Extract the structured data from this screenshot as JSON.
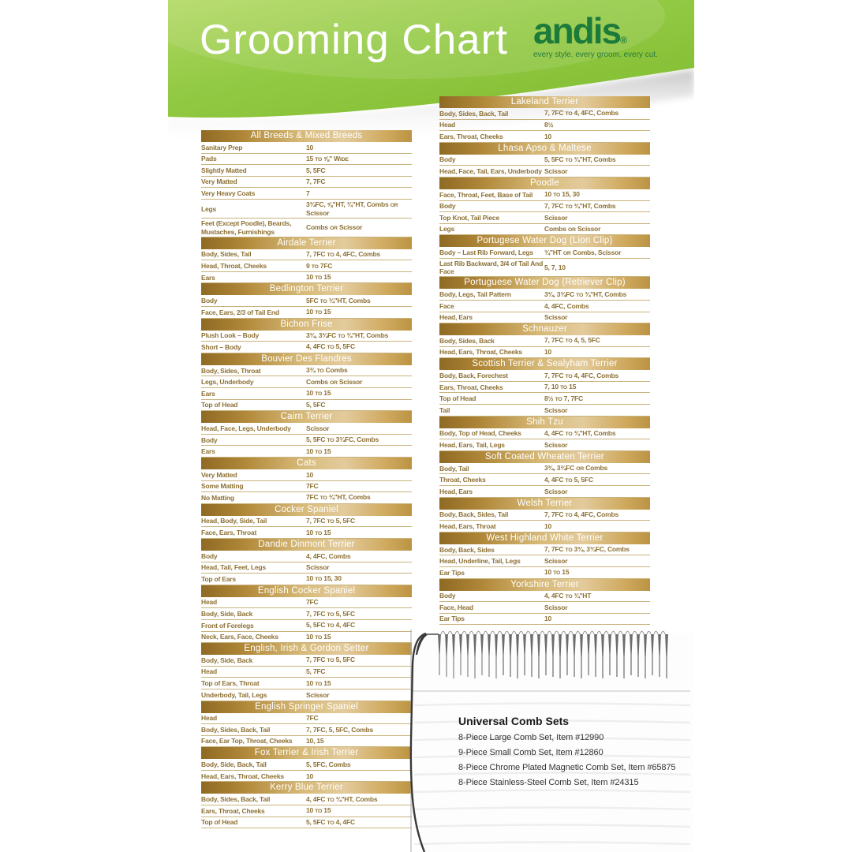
{
  "header": {
    "title": "Grooming Chart",
    "brand": "andis",
    "reg": "®",
    "tagline": "every style. every groom. every cut."
  },
  "colors": {
    "header_green": "#8ec73f",
    "header_green_light": "#b2d862",
    "header_green_dark": "#82bd31",
    "brand_green": "#1c7a3a",
    "bar_gold_dark": "#8f6a24",
    "bar_gold_light": "#e3cb9c",
    "row_text_gold": "#8d7134",
    "row_line_gold": "#c9b27c"
  },
  "left_tables": [
    {
      "title": "All Breeds & Mixed Breeds",
      "rows": [
        [
          "Sanitary Prep",
          "10"
        ],
        [
          "Pads",
          "15 to ⅝\" Wide"
        ],
        [
          "Slightly Matted",
          "5, 5FC"
        ],
        [
          "Very Matted",
          "7, 7FC"
        ],
        [
          "Very Heavy Coats",
          "7"
        ],
        [
          "Legs",
          "3¾FC, ⅝\"HT, ¾\"HT, Combs or Scissor"
        ],
        [
          "Feet (Except Poodle), Beards, Mustaches, Furnishings",
          "Combs or Scissor"
        ]
      ]
    },
    {
      "title": "Airdale Terrier",
      "rows": [
        [
          "Body, Sides, Tail",
          "7, 7FC to 4, 4FC, Combs"
        ],
        [
          "Head, Throat, Cheeks",
          "9 to 7FC"
        ],
        [
          "Ears",
          "10 to 15"
        ]
      ]
    },
    {
      "title": "Bedlington Terrier",
      "rows": [
        [
          "Body",
          "5FC to ¾\"HT, Combs"
        ],
        [
          "Face, Ears, 2/3 of Tail End",
          "10 to 15"
        ]
      ]
    },
    {
      "title": "Bichon Frise",
      "rows": [
        [
          "Plush Look – Body",
          "3¾, 3¾FC to ¾\"HT, Combs"
        ],
        [
          "Short – Body",
          "4, 4FC to 5, 5FC"
        ]
      ]
    },
    {
      "title": "Bouvier Des Flandres",
      "rows": [
        [
          "Body, Sides, Throat",
          "3¾ to Combs"
        ],
        [
          "Legs, Underbody",
          "Combs or Scissor"
        ],
        [
          "Ears",
          "10 to 15"
        ],
        [
          "Top of Head",
          "5, 5FC"
        ]
      ]
    },
    {
      "title": "Cairn Terrier",
      "rows": [
        [
          "Head, Face, Legs, Underbody",
          "Scissor"
        ],
        [
          "Body",
          "5, 5FC to 3¾FC, Combs"
        ],
        [
          "Ears",
          "10 to 15"
        ]
      ]
    },
    {
      "title": "Cats",
      "rows": [
        [
          "Very Matted",
          "10"
        ],
        [
          "Some Matting",
          "7FC"
        ],
        [
          "No Matting",
          "7FC to ¾\"HT, Combs"
        ]
      ]
    },
    {
      "title": "Cocker Spaniel",
      "rows": [
        [
          "Head, Body, Side, Tail",
          "7, 7FC to 5, 5FC"
        ],
        [
          "Face, Ears, Throat",
          "10 to 15"
        ]
      ]
    },
    {
      "title": "Dandie Dinmont Terrier",
      "rows": [
        [
          "Body",
          "4, 4FC, Combs"
        ],
        [
          "Head, Tail, Feet, Legs",
          "Scissor"
        ],
        [
          "Top of Ears",
          "10 to 15, 30"
        ]
      ]
    },
    {
      "title": "English Cocker Spaniel",
      "rows": [
        [
          "Head",
          "7FC"
        ],
        [
          "Body, Side, Back",
          "7, 7FC to 5, 5FC"
        ],
        [
          "Front of Forelegs",
          "5, 5FC to 4, 4FC"
        ],
        [
          "Neck, Ears, Face, Cheeks",
          "10 to 15"
        ]
      ]
    },
    {
      "title": "English, Irish & Gordon Setter",
      "rows": [
        [
          "Body, Side, Back",
          "7, 7FC to 5, 5FC"
        ],
        [
          "Head",
          "5, 7FC"
        ],
        [
          "Top of Ears, Throat",
          "10 to 15"
        ],
        [
          "Underbody, Tail, Legs",
          "Scissor"
        ]
      ]
    },
    {
      "title": "English Springer Spaniel",
      "rows": [
        [
          "Head",
          "7FC"
        ],
        [
          "Body, Sides, Back, Tail",
          "7, 7FC, 5, 5FC, Combs"
        ],
        [
          "Face, Ear Top, Throat, Cheeks",
          "10, 15"
        ]
      ]
    },
    {
      "title": "Fox Terrier & Irish Terrier",
      "rows": [
        [
          "Body, Side, Back, Tail",
          "5, 5FC, Combs"
        ],
        [
          "Head, Ears, Throat, Cheeks",
          "10"
        ]
      ]
    },
    {
      "title": "Kerry Blue Terrier",
      "rows": [
        [
          "Body, Sides, Back, Tail",
          "4, 4FC to ¾\"HT, Combs"
        ],
        [
          "Ears, Throat, Cheeks",
          "10 to 15"
        ],
        [
          "Top of Head",
          "5, 5FC to 4, 4FC"
        ]
      ]
    }
  ],
  "right_tables": [
    {
      "title": "Lakeland Terrier",
      "rows": [
        [
          "Body, Sides, Back, Tail",
          "7, 7FC to 4, 4FC, Combs"
        ],
        [
          "Head",
          "8½"
        ],
        [
          "Ears, Throat, Cheeks",
          "10"
        ]
      ]
    },
    {
      "title": "Lhasa Apso & Maltese",
      "rows": [
        [
          "Body",
          "5, 5FC to ¾\"HT, Combs"
        ],
        [
          "Head, Face, Tail, Ears, Underbody",
          "Scissor"
        ]
      ]
    },
    {
      "title": "Poodle",
      "rows": [
        [
          "Face, Throat, Feet, Base of Tail",
          "10 to 15, 30"
        ],
        [
          "Body",
          "7, 7FC to ¾\"HT, Combs"
        ],
        [
          "Top Knot, Tail Piece",
          "Scissor"
        ],
        [
          "Legs",
          "Combs or Scissor"
        ]
      ]
    },
    {
      "title": "Portugese Water Dog (Lion Clip)",
      "rows": [
        [
          "Body – Last Rib Forward, Legs",
          "¾\"HT or Combs, Scissor"
        ],
        [
          "Last Rib Backward, 3/4 of Tail And Face",
          "5, 7, 10"
        ]
      ]
    },
    {
      "title": "Portuguese Water Dog (Retriever Clip)",
      "rows": [
        [
          "Body, Legs, Tail Pattern",
          "3¾, 3¾FC to ¾\"HT, Combs"
        ],
        [
          "Face",
          "4, 4FC, Combs"
        ],
        [
          "Head, Ears",
          "Scissor"
        ]
      ]
    },
    {
      "title": "Schnauzer",
      "rows": [
        [
          "Body, Sides, Back",
          "7, 7FC to 4, 5, 5FC"
        ],
        [
          "Head, Ears, Throat, Cheeks",
          "10"
        ]
      ]
    },
    {
      "title": "Scottish Terrier & Sealyham Terrier",
      "rows": [
        [
          "Body, Back, Forechest",
          "7, 7FC to 4, 4FC, Combs"
        ],
        [
          "Ears, Throat, Cheeks",
          "7, 10 to 15"
        ],
        [
          "Top of Head",
          "8½ to 7, 7FC"
        ],
        [
          "Tail",
          "Scissor"
        ]
      ]
    },
    {
      "title": "Shih Tzu",
      "rows": [
        [
          "Body, Top of Head, Cheeks",
          "4, 4FC to ¾\"HT, Combs"
        ],
        [
          "Head, Ears, Tail, Legs",
          "Scissor"
        ]
      ]
    },
    {
      "title": "Soft Coated Wheaten Terrier",
      "rows": [
        [
          "Body, Tail",
          "3¾, 3¾FC or Combs"
        ],
        [
          "Throat, Cheeks",
          "4, 4FC to 5, 5FC"
        ],
        [
          "Head, Ears",
          "Scissor"
        ]
      ]
    },
    {
      "title": "Welsh Terrier",
      "rows": [
        [
          "Body, Back, Sides, Tail",
          "7, 7FC to 4, 4FC, Combs"
        ],
        [
          "Head, Ears, Throat",
          "10"
        ]
      ]
    },
    {
      "title": "West Highland White Terrier",
      "rows": [
        [
          "Body, Back, Sides",
          "7, 7FC to 3¾, 3¾FC, Combs"
        ],
        [
          "Head, Underline, Tail, Legs",
          "Scissor"
        ],
        [
          "Ear Tips",
          "10 to 15"
        ]
      ]
    },
    {
      "title": "Yorkshire Terrier",
      "rows": [
        [
          "Body",
          "4, 4FC to ¾\"HT"
        ],
        [
          "Face, Head",
          "Scissor"
        ],
        [
          "Ear Tips",
          "10"
        ]
      ]
    }
  ],
  "comb_info": {
    "title": "Universal Comb Sets",
    "items": [
      "8-Piece Large Comb Set, Item #12990",
      "9-Piece Small Comb Set, Item #12860",
      "8-Piece Chrome Plated Magnetic Comb Set, Item #65875",
      "8-Piece Stainless-Steel Comb Set, Item #24315"
    ]
  }
}
